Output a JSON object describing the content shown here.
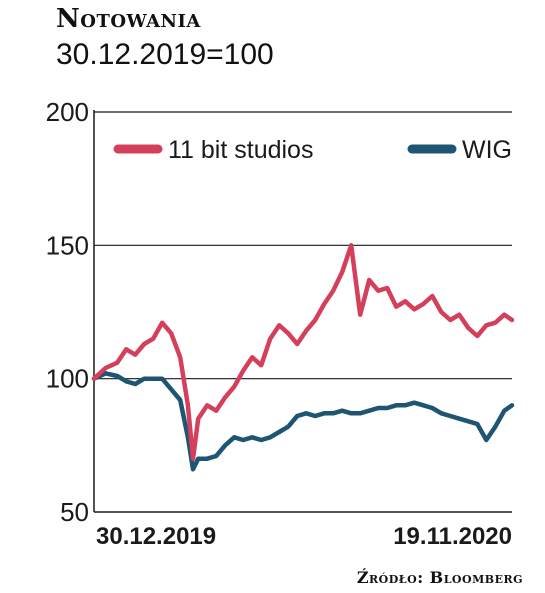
{
  "header": {
    "title": "Notowania",
    "subtitle": "30.12.2019=100"
  },
  "source": "Źródło: Bloomberg",
  "colors": {
    "series_11bit": "#d4405b",
    "series_wig": "#1d5573",
    "axis": "#1a1a1a",
    "grid": "#1a1a1a"
  },
  "chart_data": {
    "type": "line",
    "ylim": [
      50,
      200
    ],
    "yticks": [
      "200",
      "150",
      "100",
      "50"
    ],
    "ytick_values": [
      200,
      150,
      100,
      50
    ],
    "xlim": [
      "2019-12-30",
      "2020-11-19"
    ],
    "xtick_labels": [
      "30.12.2019",
      "19.11.2020"
    ],
    "grid": true,
    "legend_position": "top",
    "series": [
      {
        "name": "11 bit studios",
        "color": "#d4405b",
        "points": [
          [
            "2019-12-30",
            100
          ],
          [
            "2020-01-08",
            104
          ],
          [
            "2020-01-17",
            106
          ],
          [
            "2020-01-24",
            111
          ],
          [
            "2020-01-31",
            109
          ],
          [
            "2020-02-07",
            113
          ],
          [
            "2020-02-14",
            115
          ],
          [
            "2020-02-21",
            121
          ],
          [
            "2020-02-28",
            117
          ],
          [
            "2020-03-06",
            108
          ],
          [
            "2020-03-12",
            90
          ],
          [
            "2020-03-16",
            70
          ],
          [
            "2020-03-20",
            85
          ],
          [
            "2020-03-27",
            90
          ],
          [
            "2020-04-03",
            88
          ],
          [
            "2020-04-10",
            93
          ],
          [
            "2020-04-17",
            97
          ],
          [
            "2020-04-24",
            103
          ],
          [
            "2020-05-01",
            108
          ],
          [
            "2020-05-08",
            105
          ],
          [
            "2020-05-15",
            115
          ],
          [
            "2020-05-22",
            120
          ],
          [
            "2020-05-29",
            117
          ],
          [
            "2020-06-05",
            113
          ],
          [
            "2020-06-12",
            118
          ],
          [
            "2020-06-19",
            122
          ],
          [
            "2020-06-26",
            128
          ],
          [
            "2020-07-03",
            133
          ],
          [
            "2020-07-10",
            140
          ],
          [
            "2020-07-17",
            150
          ],
          [
            "2020-07-24",
            124
          ],
          [
            "2020-07-31",
            137
          ],
          [
            "2020-08-07",
            133
          ],
          [
            "2020-08-14",
            134
          ],
          [
            "2020-08-21",
            127
          ],
          [
            "2020-08-28",
            129
          ],
          [
            "2020-09-04",
            126
          ],
          [
            "2020-09-11",
            128
          ],
          [
            "2020-09-18",
            131
          ],
          [
            "2020-09-25",
            125
          ],
          [
            "2020-10-02",
            122
          ],
          [
            "2020-10-09",
            124
          ],
          [
            "2020-10-16",
            119
          ],
          [
            "2020-10-23",
            116
          ],
          [
            "2020-10-30",
            120
          ],
          [
            "2020-11-06",
            121
          ],
          [
            "2020-11-13",
            124
          ],
          [
            "2020-11-19",
            122
          ]
        ]
      },
      {
        "name": "WIG",
        "color": "#1d5573",
        "points": [
          [
            "2019-12-30",
            100
          ],
          [
            "2020-01-08",
            102
          ],
          [
            "2020-01-17",
            101
          ],
          [
            "2020-01-24",
            99
          ],
          [
            "2020-01-31",
            98
          ],
          [
            "2020-02-07",
            100
          ],
          [
            "2020-02-14",
            100
          ],
          [
            "2020-02-21",
            100
          ],
          [
            "2020-02-28",
            96
          ],
          [
            "2020-03-06",
            92
          ],
          [
            "2020-03-12",
            78
          ],
          [
            "2020-03-16",
            66
          ],
          [
            "2020-03-20",
            70
          ],
          [
            "2020-03-27",
            70
          ],
          [
            "2020-04-03",
            71
          ],
          [
            "2020-04-10",
            75
          ],
          [
            "2020-04-17",
            78
          ],
          [
            "2020-04-24",
            77
          ],
          [
            "2020-05-01",
            78
          ],
          [
            "2020-05-08",
            77
          ],
          [
            "2020-05-15",
            78
          ],
          [
            "2020-05-22",
            80
          ],
          [
            "2020-05-29",
            82
          ],
          [
            "2020-06-05",
            86
          ],
          [
            "2020-06-12",
            87
          ],
          [
            "2020-06-19",
            86
          ],
          [
            "2020-06-26",
            87
          ],
          [
            "2020-07-03",
            87
          ],
          [
            "2020-07-10",
            88
          ],
          [
            "2020-07-17",
            87
          ],
          [
            "2020-07-24",
            87
          ],
          [
            "2020-07-31",
            88
          ],
          [
            "2020-08-07",
            89
          ],
          [
            "2020-08-14",
            89
          ],
          [
            "2020-08-21",
            90
          ],
          [
            "2020-08-28",
            90
          ],
          [
            "2020-09-04",
            91
          ],
          [
            "2020-09-11",
            90
          ],
          [
            "2020-09-18",
            89
          ],
          [
            "2020-09-25",
            87
          ],
          [
            "2020-10-02",
            86
          ],
          [
            "2020-10-09",
            85
          ],
          [
            "2020-10-16",
            84
          ],
          [
            "2020-10-23",
            83
          ],
          [
            "2020-10-30",
            77
          ],
          [
            "2020-11-06",
            82
          ],
          [
            "2020-11-13",
            88
          ],
          [
            "2020-11-19",
            90
          ]
        ]
      }
    ]
  }
}
